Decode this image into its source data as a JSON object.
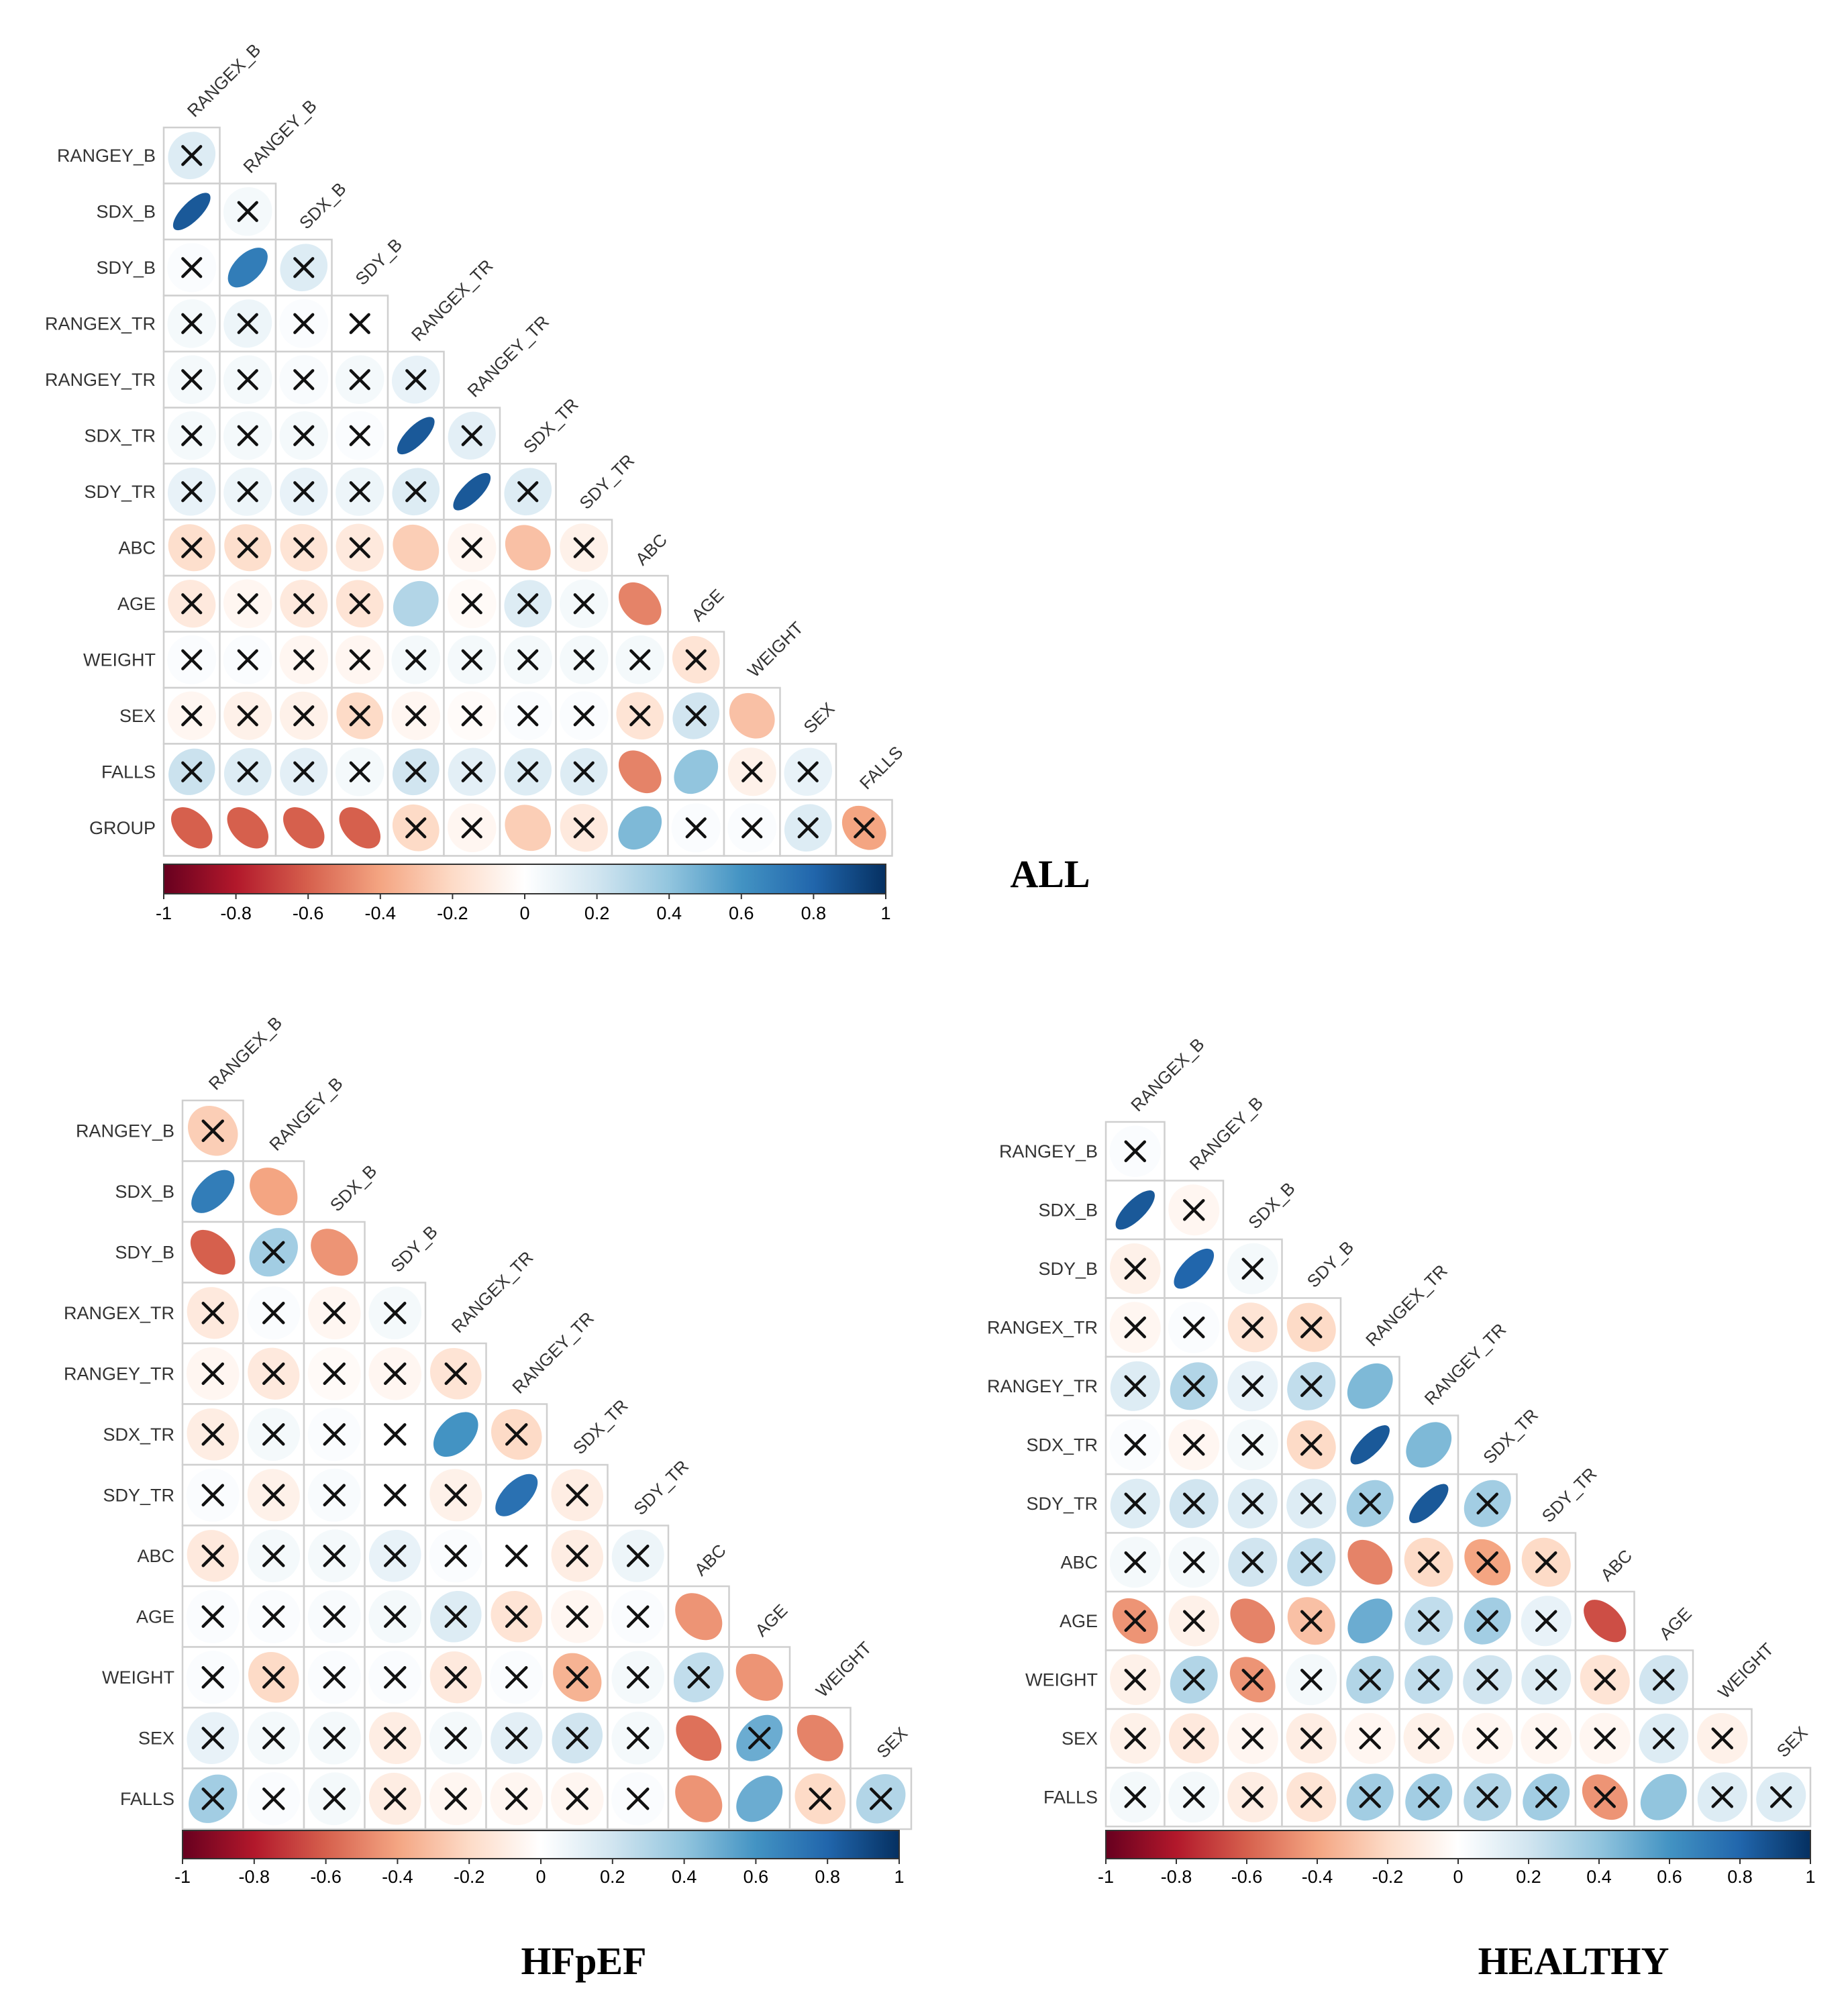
{
  "chart_data": [
    {
      "type": "heatmap",
      "title": "ALL",
      "variables": [
        "RANGEX_B",
        "RANGEY_B",
        "SDX_B",
        "SDY_B",
        "RANGEX_TR",
        "RANGEY_TR",
        "SDX_TR",
        "SDY_TR",
        "ABC",
        "AGE",
        "WEIGHT",
        "SEX",
        "FALLS",
        "GROUP"
      ],
      "row_labels": [
        "RANGEY_B",
        "SDX_B",
        "SDY_B",
        "RANGEX_TR",
        "RANGEY_TR",
        "SDX_TR",
        "SDY_TR",
        "ABC",
        "AGE",
        "WEIGHT",
        "SEX",
        "FALLS",
        "GROUP"
      ],
      "col_labels": [
        "RANGEX_B",
        "RANGEY_B",
        "SDX_B",
        "SDY_B",
        "RANGEX_TR",
        "RANGEY_TR",
        "SDX_TR",
        "SDY_TR",
        "ABC",
        "AGE",
        "WEIGHT",
        "SEX",
        "FALLS"
      ],
      "values": [
        [
          0.15
        ],
        [
          0.85,
          0.05
        ],
        [
          0.02,
          0.7,
          0.15
        ],
        [
          0.05,
          0.08,
          0.02,
          0.0
        ],
        [
          0.05,
          0.05,
          0.03,
          0.05,
          0.1
        ],
        [
          0.05,
          0.05,
          0.05,
          0.02,
          0.85,
          0.12
        ],
        [
          0.1,
          0.08,
          0.1,
          0.08,
          0.15,
          0.85,
          0.15
        ],
        [
          -0.18,
          -0.18,
          -0.15,
          -0.12,
          -0.25,
          -0.05,
          -0.3,
          -0.08
        ],
        [
          -0.12,
          -0.05,
          -0.12,
          -0.15,
          0.3,
          -0.03,
          0.15,
          0.05,
          -0.5
        ],
        [
          0.02,
          0.02,
          -0.05,
          -0.05,
          0.05,
          0.05,
          0.05,
          0.05,
          0.05,
          -0.15
        ],
        [
          -0.05,
          -0.08,
          -0.08,
          -0.2,
          -0.05,
          -0.02,
          0.02,
          0.02,
          -0.15,
          0.2,
          -0.3
        ],
        [
          0.22,
          0.15,
          0.12,
          0.05,
          0.2,
          0.12,
          0.15,
          0.15,
          -0.5,
          0.4,
          -0.08,
          0.1
        ],
        [
          -0.6,
          -0.6,
          -0.6,
          -0.6,
          -0.2,
          -0.05,
          -0.25,
          -0.12,
          0.45,
          0.02,
          0.02,
          0.15,
          -0.4
        ]
      ],
      "marked": [
        [
          1
        ],
        [
          0,
          1
        ],
        [
          1,
          0,
          1
        ],
        [
          1,
          1,
          1,
          1
        ],
        [
          1,
          1,
          1,
          1,
          1
        ],
        [
          1,
          1,
          1,
          1,
          0,
          1
        ],
        [
          1,
          1,
          1,
          1,
          1,
          0,
          1
        ],
        [
          1,
          1,
          1,
          1,
          0,
          1,
          0,
          1
        ],
        [
          1,
          1,
          1,
          1,
          0,
          1,
          1,
          1,
          0
        ],
        [
          1,
          1,
          1,
          1,
          1,
          1,
          1,
          1,
          1,
          1
        ],
        [
          1,
          1,
          1,
          1,
          1,
          1,
          1,
          1,
          1,
          1,
          0
        ],
        [
          1,
          1,
          1,
          1,
          1,
          1,
          1,
          1,
          0,
          0,
          1,
          1
        ],
        [
          0,
          0,
          0,
          0,
          1,
          1,
          0,
          1,
          0,
          1,
          1,
          1,
          1
        ]
      ],
      "colorbar": {
        "range": [
          -1,
          1
        ],
        "ticks": [
          "-1",
          "-0.8",
          "-0.6",
          "-0.4",
          "-0.2",
          "0",
          "0.2",
          "0.4",
          "0.6",
          "0.8",
          "1"
        ]
      }
    },
    {
      "type": "heatmap",
      "title": "HFpEF",
      "variables": [
        "RANGEX_B",
        "RANGEY_B",
        "SDX_B",
        "SDY_B",
        "RANGEX_TR",
        "RANGEY_TR",
        "SDX_TR",
        "SDY_TR",
        "ABC",
        "AGE",
        "WEIGHT",
        "SEX",
        "FALLS"
      ],
      "row_labels": [
        "RANGEY_B",
        "SDX_B",
        "SDY_B",
        "RANGEX_TR",
        "RANGEY_TR",
        "SDX_TR",
        "SDY_TR",
        "ABC",
        "AGE",
        "WEIGHT",
        "SEX",
        "FALLS"
      ],
      "col_labels": [
        "RANGEX_B",
        "RANGEY_B",
        "SDX_B",
        "SDY_B",
        "RANGEX_TR",
        "RANGEY_TR",
        "SDX_TR",
        "SDY_TR",
        "ABC",
        "AGE",
        "WEIGHT",
        "SEX"
      ],
      "values": [
        [
          -0.25
        ],
        [
          0.7,
          -0.4
        ],
        [
          -0.6,
          0.35,
          -0.45
        ],
        [
          -0.12,
          0.02,
          -0.05,
          0.05
        ],
        [
          -0.05,
          -0.12,
          -0.03,
          -0.05,
          -0.15
        ],
        [
          -0.1,
          0.05,
          0.02,
          0.0,
          0.6,
          -0.2
        ],
        [
          0.02,
          -0.08,
          0.03,
          0.0,
          -0.08,
          0.75,
          -0.1
        ],
        [
          -0.12,
          0.05,
          0.05,
          0.1,
          0.02,
          0.0,
          -0.1,
          0.08
        ],
        [
          0.02,
          0.02,
          0.03,
          0.05,
          0.15,
          -0.15,
          -0.05,
          0.02,
          -0.45
        ],
        [
          0.02,
          -0.2,
          0.02,
          0.02,
          -0.12,
          0.02,
          -0.35,
          0.05,
          0.25,
          -0.45
        ],
        [
          0.1,
          0.05,
          0.05,
          -0.1,
          0.05,
          0.12,
          0.2,
          0.05,
          -0.55,
          0.5,
          -0.5
        ],
        [
          0.35,
          0.02,
          0.05,
          -0.1,
          -0.05,
          -0.05,
          -0.05,
          0.02,
          -0.45,
          0.5,
          -0.2,
          0.3
        ]
      ],
      "marked": [
        [
          1
        ],
        [
          0,
          0
        ],
        [
          0,
          1,
          0
        ],
        [
          1,
          1,
          1,
          1
        ],
        [
          1,
          1,
          1,
          1,
          1
        ],
        [
          1,
          1,
          1,
          1,
          0,
          1
        ],
        [
          1,
          1,
          1,
          1,
          1,
          0,
          1
        ],
        [
          1,
          1,
          1,
          1,
          1,
          1,
          1,
          1
        ],
        [
          1,
          1,
          1,
          1,
          1,
          1,
          1,
          1,
          0
        ],
        [
          1,
          1,
          1,
          1,
          1,
          1,
          1,
          1,
          1,
          0
        ],
        [
          1,
          1,
          1,
          1,
          1,
          1,
          1,
          1,
          0,
          1,
          0
        ],
        [
          1,
          1,
          1,
          1,
          1,
          1,
          1,
          1,
          0,
          0,
          1,
          1
        ]
      ],
      "colorbar": {
        "range": [
          -1,
          1
        ],
        "ticks": [
          "-1",
          "-0.8",
          "-0.6",
          "-0.4",
          "-0.2",
          "0",
          "0.2",
          "0.4",
          "0.6",
          "0.8",
          "1"
        ]
      }
    },
    {
      "type": "heatmap",
      "title": "HEALTHY",
      "variables": [
        "RANGEX_B",
        "RANGEY_B",
        "SDX_B",
        "SDY_B",
        "RANGEX_TR",
        "RANGEY_TR",
        "SDX_TR",
        "SDY_TR",
        "ABC",
        "AGE",
        "WEIGHT",
        "SEX",
        "FALLS"
      ],
      "row_labels": [
        "RANGEY_B",
        "SDX_B",
        "SDY_B",
        "RANGEX_TR",
        "RANGEY_TR",
        "SDX_TR",
        "SDY_TR",
        "ABC",
        "AGE",
        "WEIGHT",
        "SEX",
        "FALLS"
      ],
      "col_labels": [
        "RANGEX_B",
        "RANGEY_B",
        "SDX_B",
        "SDY_B",
        "RANGEX_TR",
        "RANGEY_TR",
        "SDX_TR",
        "SDY_TR",
        "ABC",
        "AGE",
        "WEIGHT",
        "SEX"
      ],
      "values": [
        [
          0.02
        ],
        [
          0.85,
          -0.05
        ],
        [
          -0.08,
          0.8,
          0.05
        ],
        [
          -0.05,
          0.02,
          -0.15,
          -0.2
        ],
        [
          0.15,
          0.3,
          0.1,
          0.25,
          0.45
        ],
        [
          0.02,
          -0.05,
          0.05,
          -0.2,
          0.85,
          0.45
        ],
        [
          0.15,
          0.2,
          0.15,
          0.15,
          0.35,
          0.85,
          0.35
        ],
        [
          0.05,
          0.05,
          0.2,
          0.25,
          -0.5,
          -0.2,
          -0.4,
          -0.2
        ],
        [
          -0.45,
          -0.08,
          -0.5,
          -0.3,
          0.5,
          0.25,
          0.35,
          0.1,
          -0.65
        ],
        [
          -0.08,
          0.3,
          -0.45,
          0.05,
          0.3,
          0.25,
          0.2,
          0.15,
          -0.15,
          0.2
        ],
        [
          -0.08,
          -0.12,
          -0.05,
          -0.1,
          -0.05,
          -0.08,
          -0.05,
          -0.05,
          -0.05,
          0.15,
          -0.08
        ],
        [
          0.05,
          0.05,
          -0.1,
          -0.15,
          0.35,
          0.35,
          0.3,
          0.35,
          -0.45,
          0.4,
          0.15,
          0.15
        ]
      ],
      "marked": [
        [
          1
        ],
        [
          0,
          1
        ],
        [
          1,
          0,
          1
        ],
        [
          1,
          1,
          1,
          1
        ],
        [
          1,
          1,
          1,
          1,
          0
        ],
        [
          1,
          1,
          1,
          1,
          0,
          0
        ],
        [
          1,
          1,
          1,
          1,
          1,
          0,
          1
        ],
        [
          1,
          1,
          1,
          1,
          0,
          1,
          1,
          1
        ],
        [
          1,
          1,
          0,
          1,
          0,
          1,
          1,
          1,
          0
        ],
        [
          1,
          1,
          1,
          1,
          1,
          1,
          1,
          1,
          1,
          1
        ],
        [
          1,
          1,
          1,
          1,
          1,
          1,
          1,
          1,
          1,
          1,
          1
        ],
        [
          1,
          1,
          1,
          1,
          1,
          1,
          1,
          1,
          1,
          0,
          1,
          1
        ]
      ],
      "colorbar": {
        "range": [
          -1,
          1
        ],
        "ticks": [
          "-1",
          "-0.8",
          "-0.6",
          "-0.4",
          "-0.2",
          "0",
          "0.2",
          "0.4",
          "0.6",
          "0.8",
          "1"
        ]
      }
    }
  ]
}
